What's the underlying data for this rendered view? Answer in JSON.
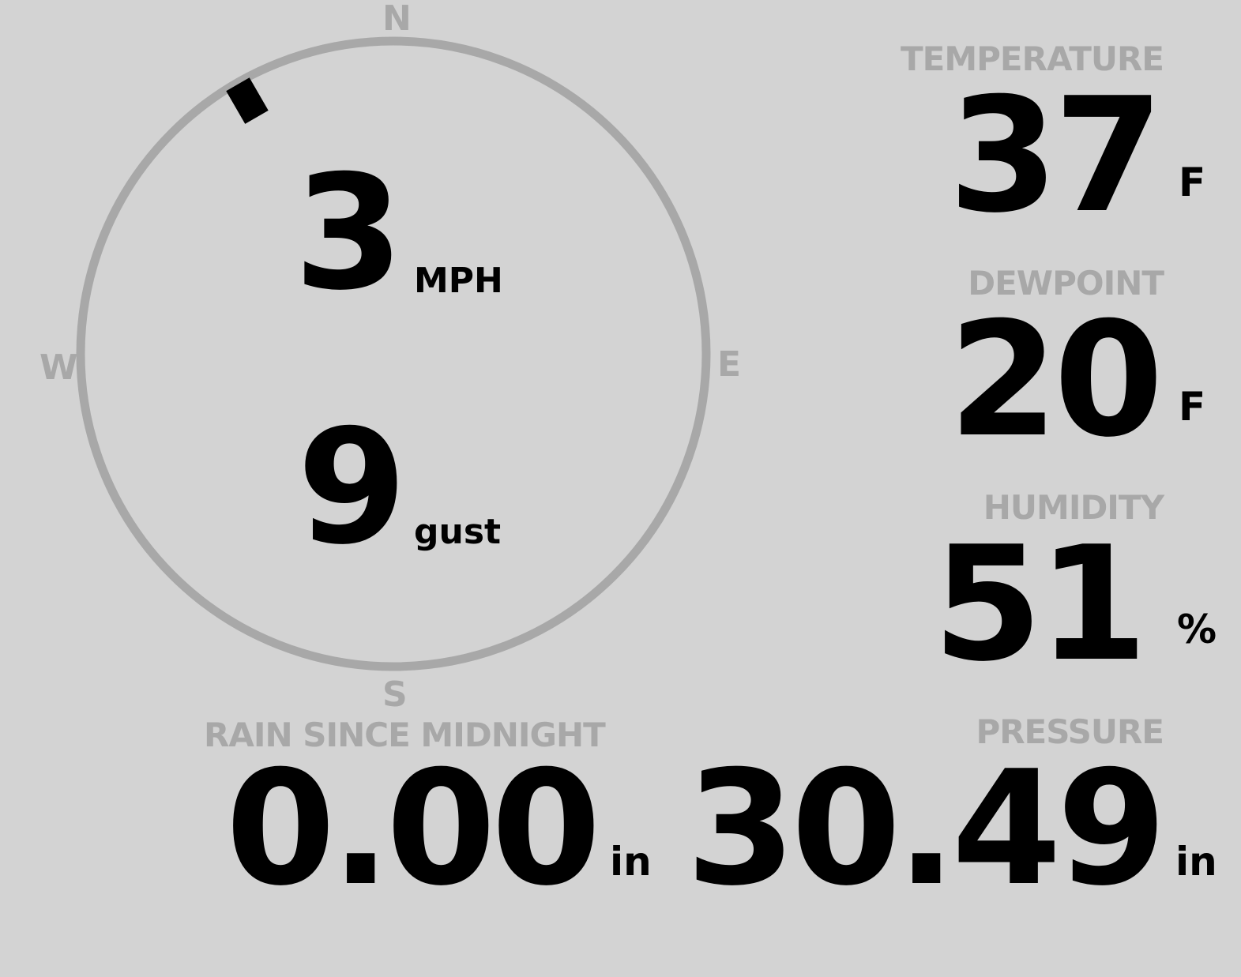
{
  "wind": {
    "compass": {
      "n": "N",
      "e": "E",
      "s": "S",
      "w": "W"
    },
    "direction_degrees": 330,
    "speed": "3",
    "speed_unit": "MPH",
    "gust": "9",
    "gust_unit": "gust",
    "ring_color": "#a8a8a8"
  },
  "temperature": {
    "label": "TEMPERATURE",
    "value": "37",
    "unit": "F"
  },
  "dewpoint": {
    "label": "DEWPOINT",
    "value": "20",
    "unit": "F"
  },
  "humidity": {
    "label": "HUMIDITY",
    "value": "51",
    "unit": "%"
  },
  "rain": {
    "label": "RAIN SINCE MIDNIGHT",
    "value": "0.00",
    "unit": "in"
  },
  "pressure": {
    "label": "PRESSURE",
    "value": "30.49",
    "unit": "in"
  }
}
